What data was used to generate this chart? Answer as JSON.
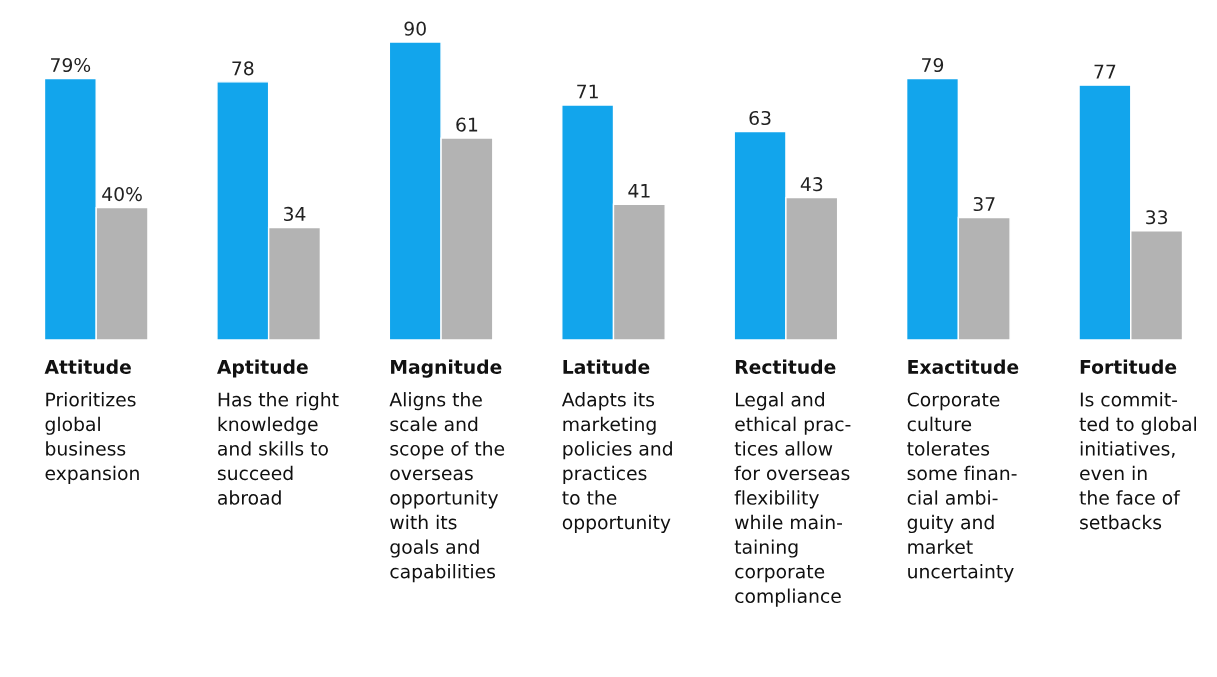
{
  "chart_data": {
    "type": "bar",
    "categories": [
      "Attitude\nPrioritizes\nglobal\nbusiness\nexpansion",
      "Aptitude\nHas the right\nknowledge\nand skills to\nsucceed\nabroad",
      "Magnitude\nAligns the\nscale and\nscope of the\noverseas\nopportunity\nwith its\ngoals and\ncapabilities",
      "Latitude\nAdapts its\nmarketing\npolicies and\npractices\nto the\nopportunity",
      "Rectitude\nLegal and\nethical prac-\ntices allow\nfor overseas\nflexibility\nwhile main-\ntaining\ncorporate\ncompliance",
      "Exactitude\nCorporate\nculture\ntolerates\nsome finan-\ncial ambi-\nguity and\nmarket\nuncertainty",
      "Fortitude\nIs commit-\nted to global\ninitiatives,\neven in\nthe face of\nsetbacks"
    ],
    "series": [
      {
        "color": "#12a5ec",
        "values": [
          79,
          78,
          90,
          71,
          63,
          79,
          77
        ],
        "value_labels": [
          "79%",
          "78",
          "90",
          "71",
          "63",
          "79",
          "77"
        ]
      },
      {
        "color": "#b3b3b3",
        "values": [
          40,
          34,
          61,
          41,
          43,
          37,
          33
        ],
        "value_labels": [
          "40%",
          "34",
          "61",
          "41",
          "43",
          "37",
          "33"
        ]
      }
    ],
    "legend": false
  }
}
